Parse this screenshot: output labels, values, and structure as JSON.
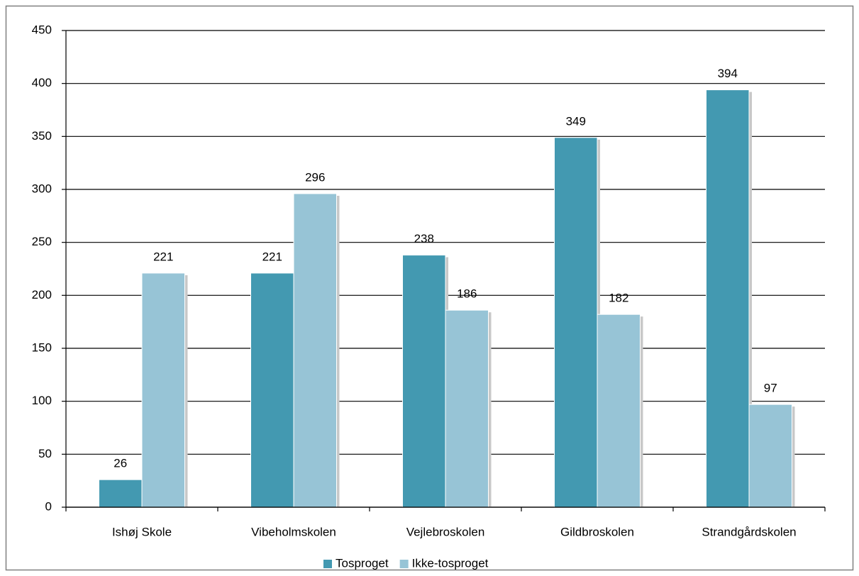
{
  "chart_data": {
    "type": "bar",
    "categories": [
      "Ishøj Skole",
      "Vibeholmskolen",
      "Vejlebroskolen",
      "Gildbroskolen",
      "Strandgårdskolen"
    ],
    "series": [
      {
        "name": "Tosproget",
        "color": "#4399b1",
        "values": [
          26,
          221,
          238,
          349,
          394
        ]
      },
      {
        "name": "Ikke-tosproget",
        "color": "#97c4d6",
        "values": [
          221,
          296,
          186,
          182,
          97
        ]
      }
    ],
    "ylim": [
      0,
      450
    ],
    "yticks": [
      0,
      50,
      100,
      150,
      200,
      250,
      300,
      350,
      400,
      450
    ],
    "grid": true,
    "legend": "bottom"
  }
}
